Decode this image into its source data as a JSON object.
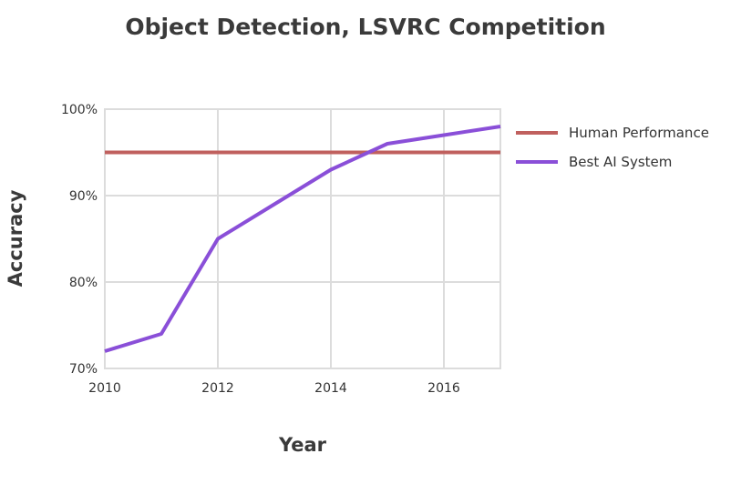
{
  "chart_data": {
    "type": "line",
    "title": "Object Detection, LSVRC Competition",
    "xlabel": "Year",
    "ylabel": "Accuracy",
    "xlim": [
      2010,
      2017
    ],
    "ylim": [
      70,
      100
    ],
    "x_ticks": [
      2010,
      2012,
      2014,
      2016
    ],
    "x_tick_labels": [
      "2010",
      "2012",
      "2014",
      "2016"
    ],
    "y_ticks": [
      70,
      80,
      90,
      100
    ],
    "y_tick_labels": [
      "70%",
      "80%",
      "90%",
      "100%"
    ],
    "grid": true,
    "legend_position": "right",
    "series": [
      {
        "name": "Human Performance",
        "color": "#c0605e",
        "x": [
          2010,
          2017
        ],
        "y": [
          95,
          95
        ]
      },
      {
        "name": "Best AI System",
        "color": "#8a4fd8",
        "x": [
          2010,
          2011,
          2012,
          2013,
          2014,
          2015,
          2016,
          2017
        ],
        "y": [
          72,
          74,
          85,
          89,
          93,
          96,
          97,
          98
        ]
      }
    ]
  }
}
